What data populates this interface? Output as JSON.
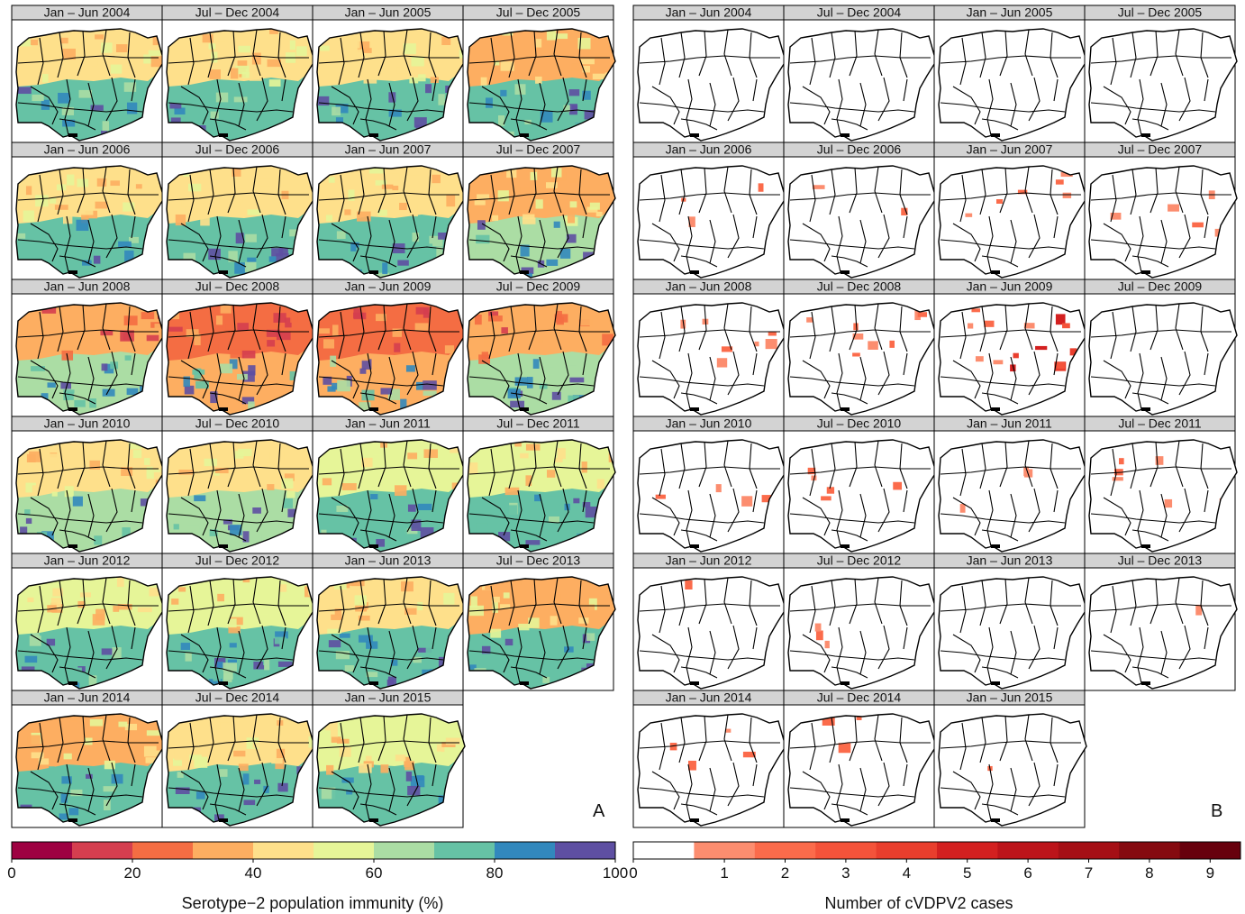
{
  "panel_a": {
    "letter": "A",
    "facets": [
      "Jan – Jun 2004",
      "Jul – Dec 2004",
      "Jan – Jun 2005",
      "Jul – Dec 2005",
      "Jan – Jun 2006",
      "Jul – Dec 2006",
      "Jan – Jun 2007",
      "Jul – Dec 2007",
      "Jan – Jun 2008",
      "Jul – Dec 2008",
      "Jan – Jun 2009",
      "Jul – Dec 2009",
      "Jan – Jun 2010",
      "Jul – Dec 2010",
      "Jan – Jun 2011",
      "Jul – Dec 2011",
      "Jan – Jun 2012",
      "Jul – Dec 2012",
      "Jan – Jun 2013",
      "Jul – Dec 2013",
      "Jan – Jun 2014",
      "Jul – Dec 2014",
      "Jan – Jun 2015"
    ],
    "legend": {
      "title": "Serotype−2 population immunity (%)",
      "ticks": [
        "0",
        "20",
        "40",
        "60",
        "80",
        "100"
      ],
      "colors": [
        "#9e0142",
        "#d53e4f",
        "#f46d43",
        "#fdae61",
        "#fee08b",
        "#e6f598",
        "#abdda4",
        "#66c2a5",
        "#3288bd",
        "#5e4fa2"
      ]
    },
    "north_color": [
      "#fee08b",
      "#fee08b",
      "#fee08b",
      "#fdae61",
      "#fee08b",
      "#fee08b",
      "#fee08b",
      "#fdae61",
      "#fdae61",
      "#f46d43",
      "#f46d43",
      "#fdae61",
      "#fee08b",
      "#fee08b",
      "#e6f598",
      "#e6f598",
      "#e6f598",
      "#e6f598",
      "#fee08b",
      "#fdae61",
      "#fdae61",
      "#fee08b",
      "#e6f598"
    ],
    "south_color": [
      "#66c2a5",
      "#66c2a5",
      "#66c2a5",
      "#66c2a5",
      "#66c2a5",
      "#66c2a5",
      "#66c2a5",
      "#abdda4",
      "#abdda4",
      "#fdae61",
      "#fdae61",
      "#abdda4",
      "#abdda4",
      "#abdda4",
      "#66c2a5",
      "#66c2a5",
      "#66c2a5",
      "#66c2a5",
      "#66c2a5",
      "#66c2a5",
      "#66c2a5",
      "#66c2a5",
      "#66c2a5"
    ]
  },
  "panel_b": {
    "letter": "B",
    "facets": [
      "Jan – Jun 2004",
      "Jul – Dec 2004",
      "Jan – Jun 2005",
      "Jul – Dec 2005",
      "Jan – Jun 2006",
      "Jul – Dec 2006",
      "Jan – Jun 2007",
      "Jul – Dec 2007",
      "Jan – Jun 2008",
      "Jul – Dec 2008",
      "Jan – Jun 2009",
      "Jul – Dec 2009",
      "Jan – Jun 2010",
      "Jul – Dec 2010",
      "Jan – Jun 2011",
      "Jul – Dec 2011",
      "Jan – Jun 2012",
      "Jul – Dec 2012",
      "Jan – Jun 2013",
      "Jul – Dec 2013",
      "Jan – Jun 2014",
      "Jul – Dec 2014",
      "Jan – Jun 2015"
    ],
    "legend": {
      "title": "Number of cVDPV2 cases",
      "ticks": [
        "0",
        "1",
        "2",
        "3",
        "4",
        "5",
        "6",
        "7",
        "8",
        "9"
      ],
      "colors": [
        "#ffffff",
        "#fc8d6f",
        "#fb6b4b",
        "#f4533a",
        "#e93e2d",
        "#d32020",
        "#bc141a",
        "#a50f15",
        "#850a10",
        "#67000d"
      ]
    },
    "case_counts": [
      0,
      0,
      0,
      0,
      3,
      2,
      6,
      5,
      7,
      8,
      14,
      0,
      4,
      5,
      3,
      6,
      1,
      3,
      0,
      1,
      4,
      3,
      1
    ]
  },
  "colors": {
    "panel_strip": "#d3d3d3",
    "border": "#000000"
  }
}
